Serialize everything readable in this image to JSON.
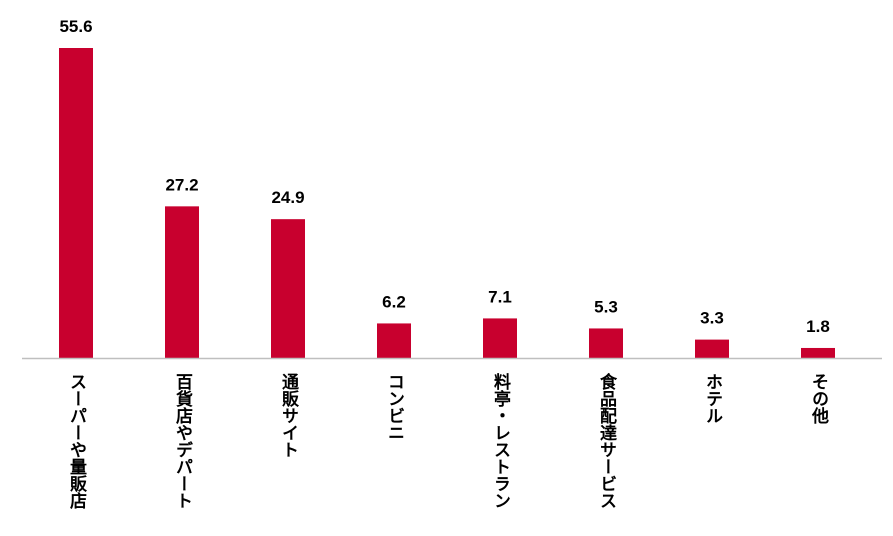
{
  "chart_data": {
    "type": "bar",
    "categories": [
      "スーパーや量販店",
      "百貨店やデパート",
      "通販サイト",
      "コンビニ",
      "料亭・レストラン",
      "食品配達サービス",
      "ホテル",
      "その他"
    ],
    "values": [
      55.6,
      27.2,
      24.9,
      6.2,
      7.1,
      5.3,
      3.3,
      1.8
    ],
    "value_labels": [
      "55.6",
      "27.2",
      "24.9",
      "6.2",
      "7.1",
      "5.3",
      "3.3",
      "1.8"
    ],
    "title": "",
    "xlabel": "",
    "ylabel": "",
    "ylim": [
      0,
      55.6
    ],
    "grid": false,
    "legend": "none",
    "bar_color": "#c8002e",
    "axis_color": "#bfbfbf"
  }
}
